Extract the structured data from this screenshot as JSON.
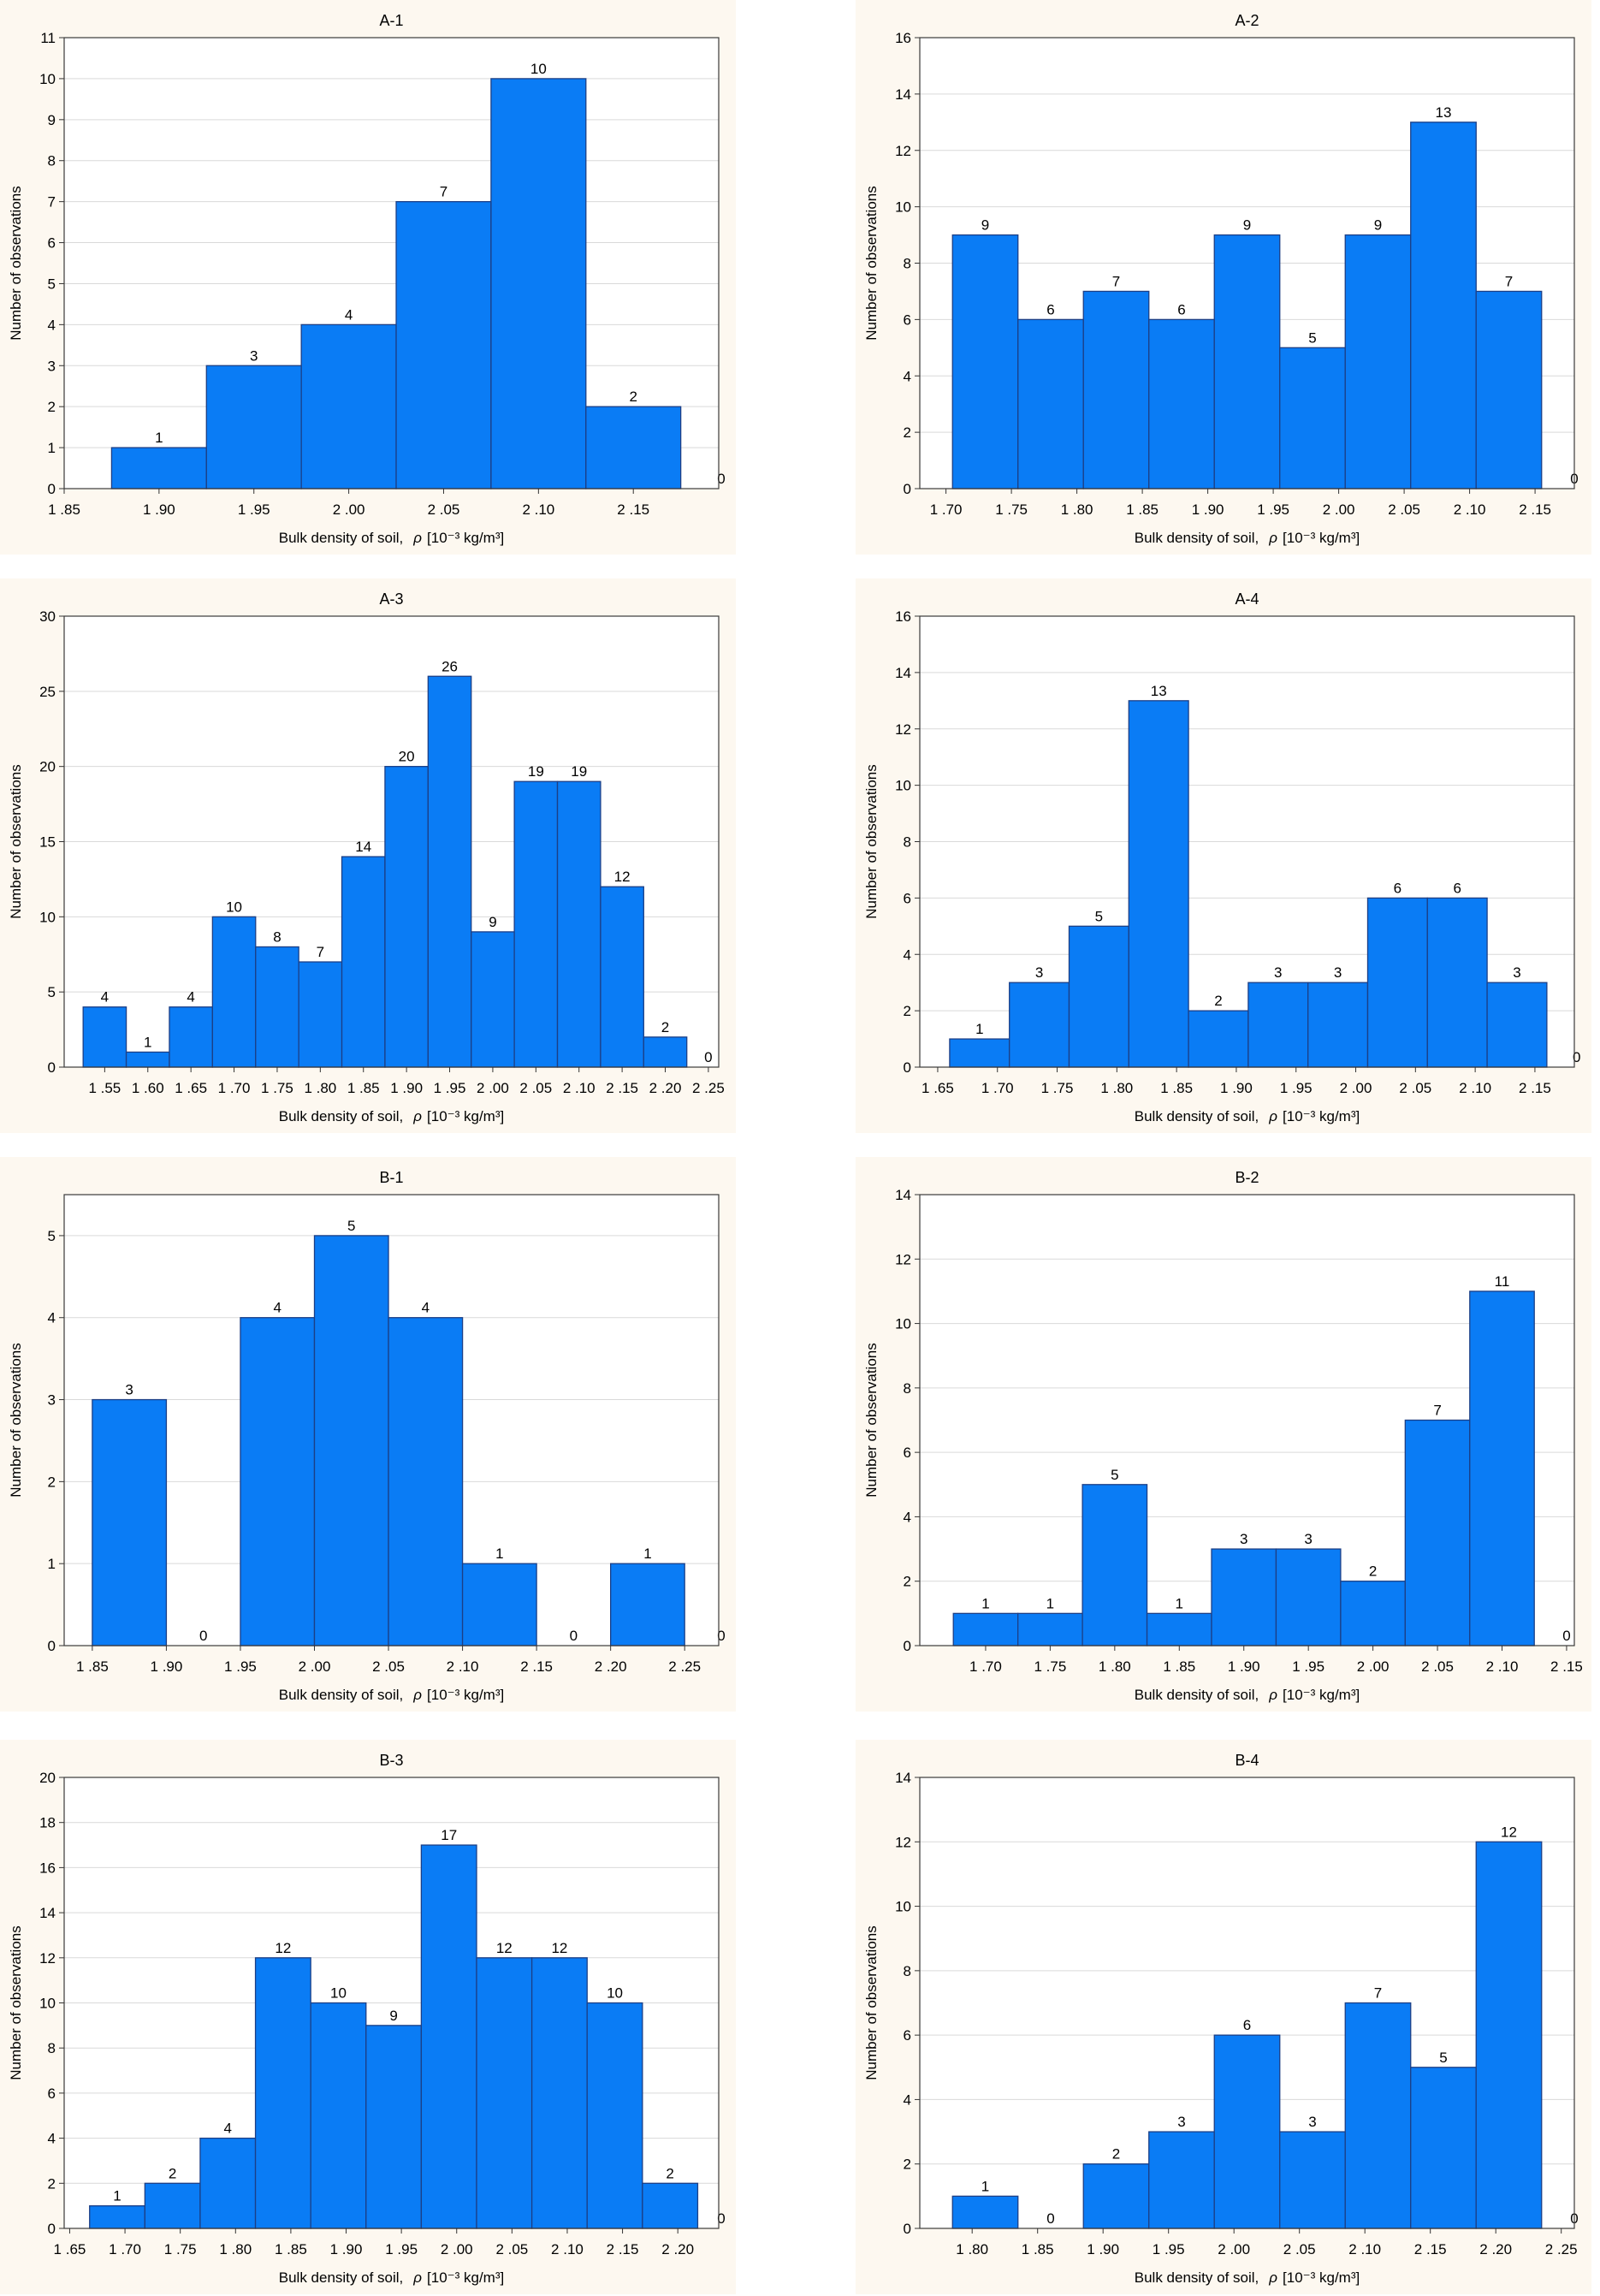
{
  "colors": {
    "panel_background": "#fdf8f0",
    "plot_background": "#ffffff",
    "bar_fill": "#0a7cf5",
    "bar_stroke": "#1c3f86"
  },
  "chart_data": [
    {
      "type": "bar",
      "title": "A-1",
      "ylabel": "Number of observations",
      "xlabel": {
        "text": "Bulk density of soil,",
        "symbol": "ρ",
        "unit": "[10⁻³ kg/m³]"
      },
      "xlim": [
        1.85,
        2.195
      ],
      "ylim": [
        0,
        11
      ],
      "yticks": [
        0,
        1,
        2,
        3,
        4,
        5,
        6,
        7,
        8,
        9,
        10,
        11
      ],
      "xtick_labels": [
        "1 .85",
        "1 .90",
        "1 .95",
        "2 .00",
        "2 .05",
        "2 .10",
        "2 .15"
      ],
      "bin_start": 1.875,
      "bin_width": 0.05,
      "counts": [
        1,
        3,
        4,
        7,
        10,
        2,
        0
      ],
      "grid": true
    },
    {
      "type": "bar",
      "title": "A-2",
      "ylabel": "Number of observations",
      "xlabel": {
        "text": "Bulk density of soil,",
        "symbol": "ρ",
        "unit": "[10⁻³ kg/m³]"
      },
      "xlim": [
        1.68,
        2.18
      ],
      "ylim": [
        0,
        16
      ],
      "yticks": [
        0,
        2,
        4,
        6,
        8,
        10,
        12,
        14,
        16
      ],
      "xtick_labels": [
        "1 .70",
        "1 .75",
        "1 .80",
        "1 .85",
        "1 .90",
        "1 .95",
        "2 .00",
        "2 .05",
        "2 .10",
        "2 .15"
      ],
      "bin_start": 1.705,
      "bin_width": 0.05,
      "counts": [
        9,
        6,
        7,
        6,
        9,
        5,
        9,
        13,
        7,
        0
      ],
      "grid": true
    },
    {
      "type": "bar",
      "title": "A-3",
      "ylabel": "Number of observations",
      "xlabel": {
        "text": "Bulk density of soil,",
        "symbol": "ρ",
        "unit": "[10⁻³ kg/m³]"
      },
      "xlim": [
        1.503,
        2.262
      ],
      "ylim": [
        0,
        30
      ],
      "yticks": [
        0,
        5,
        10,
        15,
        20,
        25,
        30
      ],
      "xtick_labels": [
        "1 .55",
        "1 .60",
        "1 .65",
        "1 .70",
        "1 .75",
        "1 .80",
        "1 .85",
        "1 .90",
        "1 .95",
        "2 .00",
        "2 .05",
        "2 .10",
        "2 .15",
        "2 .20",
        "2 .25"
      ],
      "bin_start": 1.525,
      "bin_width": 0.05,
      "counts": [
        4,
        1,
        4,
        10,
        8,
        7,
        14,
        20,
        26,
        9,
        19,
        19,
        12,
        2,
        0
      ],
      "grid": true
    },
    {
      "type": "bar",
      "title": "A-4",
      "ylabel": "Number of observations",
      "xlabel": {
        "text": "Bulk density of soil,",
        "symbol": "ρ",
        "unit": "[10⁻³ kg/m³]"
      },
      "xlim": [
        1.635,
        2.183
      ],
      "ylim": [
        0,
        16
      ],
      "yticks": [
        0,
        2,
        4,
        6,
        8,
        10,
        12,
        14,
        16
      ],
      "xtick_labels": [
        "1 .65",
        "1 .70",
        "1 .75",
        "1 .80",
        "1 .85",
        "1 .90",
        "1 .95",
        "2 .00",
        "2 .05",
        "2 .10",
        "2 .15"
      ],
      "bin_start": 1.66,
      "bin_width": 0.05,
      "counts": [
        1,
        3,
        5,
        13,
        2,
        3,
        3,
        6,
        6,
        3,
        0
      ],
      "grid": true
    },
    {
      "type": "bar",
      "title": "B-1",
      "ylabel": "Number of observations",
      "xlabel": {
        "text": "Bulk density of soil,",
        "symbol": "ρ",
        "unit": "[10⁻³ kg/m³]"
      },
      "xlim": [
        1.831,
        2.273
      ],
      "ylim": [
        0,
        5.5
      ],
      "yticks": [
        0,
        1,
        2,
        3,
        4,
        5
      ],
      "xtick_labels": [
        "1 .85",
        "1 .90",
        "1 .95",
        "2 .00",
        "2 .05",
        "2 .10",
        "2 .15",
        "2 .20",
        "2 .25"
      ],
      "bin_start": 1.85,
      "bin_width": 0.05,
      "counts": [
        3,
        0,
        4,
        5,
        4,
        1,
        0,
        1,
        0
      ],
      "grid": true
    },
    {
      "type": "bar",
      "title": "B-2",
      "ylabel": "Number of observations",
      "xlabel": {
        "text": "Bulk density of soil,",
        "symbol": "ρ",
        "unit": "[10⁻³ kg/m³]"
      },
      "xlim": [
        1.649,
        2.156
      ],
      "ylim": [
        0,
        14
      ],
      "yticks": [
        0,
        2,
        4,
        6,
        8,
        10,
        12,
        14
      ],
      "xtick_labels": [
        "1 .70",
        "1 .75",
        "1 .80",
        "1 .85",
        "1 .90",
        "1 .95",
        "2 .00",
        "2 .05",
        "2 .10",
        "2 .15"
      ],
      "bin_start": 1.675,
      "bin_width": 0.05,
      "counts": [
        1,
        1,
        5,
        1,
        3,
        3,
        2,
        7,
        11,
        0
      ],
      "grid": true
    },
    {
      "type": "bar",
      "title": "B-3",
      "ylabel": "Number of observations",
      "xlabel": {
        "text": "Bulk density of soil,",
        "symbol": "ρ",
        "unit": "[10⁻³ kg/m³]"
      },
      "xlim": [
        1.645,
        2.237
      ],
      "ylim": [
        0,
        20
      ],
      "yticks": [
        0,
        2,
        4,
        6,
        8,
        10,
        12,
        14,
        16,
        18,
        20
      ],
      "xtick_labels": [
        "1 .65",
        "1 .70",
        "1 .75",
        "1 .80",
        "1 .85",
        "1 .90",
        "1 .95",
        "2 .00",
        "2 .05",
        "2 .10",
        "2 .15",
        "2 .20"
      ],
      "bin_start": 1.668,
      "bin_width": 0.05,
      "counts": [
        1,
        2,
        4,
        12,
        10,
        9,
        17,
        12,
        12,
        10,
        2,
        0
      ],
      "grid": true
    },
    {
      "type": "bar",
      "title": "B-4",
      "ylabel": "Number of observations",
      "xlabel": {
        "text": "Bulk density of soil,",
        "symbol": "ρ",
        "unit": "[10⁻³ kg/m³]"
      },
      "xlim": [
        1.76,
        2.26
      ],
      "ylim": [
        0,
        14
      ],
      "yticks": [
        0,
        2,
        4,
        6,
        8,
        10,
        12,
        14
      ],
      "xtick_labels": [
        "1 .80",
        "1 .85",
        "1 .90",
        "1 .95",
        "2 .00",
        "2 .05",
        "2 .10",
        "2 .15",
        "2 .20",
        "2 .25"
      ],
      "bin_start": 1.785,
      "bin_width": 0.05,
      "counts": [
        1,
        0,
        2,
        3,
        6,
        3,
        7,
        5,
        12,
        0
      ],
      "grid": true
    }
  ]
}
